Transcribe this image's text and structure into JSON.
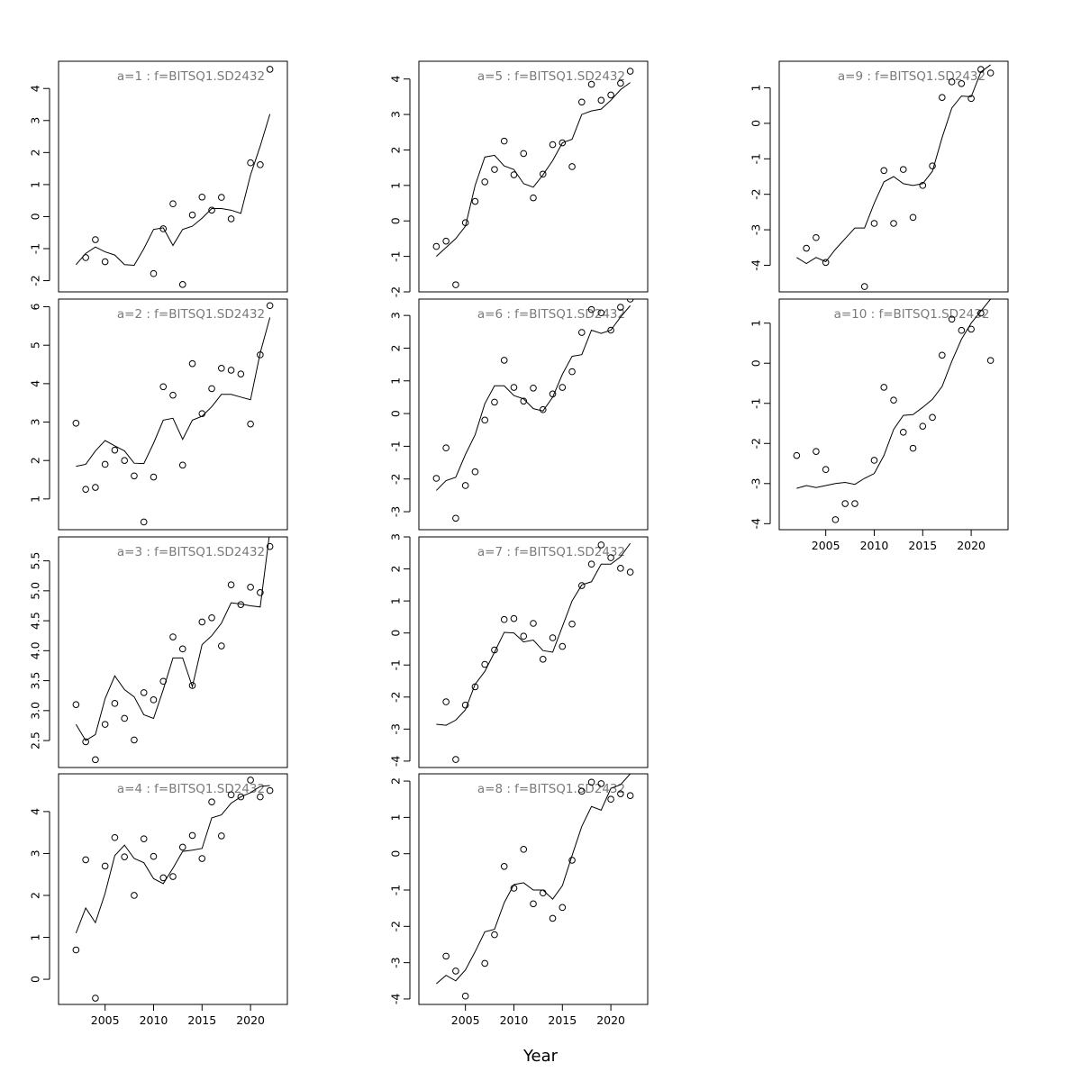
{
  "figure": {
    "xlabel": "Year",
    "xticks": [
      2005,
      2010,
      2015,
      2020
    ]
  },
  "chart_data": [
    {
      "type": "line",
      "title": "a=1  :  f=BITSQ1.SD2432",
      "column": 1,
      "row": 1,
      "xlim": [
        2000.2,
        2023.8
      ],
      "ylim": [
        -2.35,
        4.85
      ],
      "yticks": [
        -2,
        -1,
        0,
        1,
        2,
        3,
        4
      ],
      "x_axis": false,
      "x": [
        2002,
        2003,
        2004,
        2005,
        2006,
        2007,
        2008,
        2009,
        2010,
        2011,
        2012,
        2013,
        2014,
        2015,
        2016,
        2017,
        2018,
        2019,
        2020,
        2021,
        2022
      ],
      "series": [
        {
          "kind": "observed",
          "y": [
            null,
            -1.28,
            -0.72,
            -1.41,
            null,
            null,
            null,
            null,
            -1.78,
            -0.38,
            0.4,
            -2.12,
            0.05,
            0.61,
            0.2,
            0.6,
            -0.07,
            null,
            1.68,
            1.62,
            4.6
          ]
        },
        {
          "kind": "fitted",
          "y": [
            -1.5,
            -1.15,
            -0.95,
            -1.1,
            -1.2,
            -1.5,
            -1.52,
            -1.0,
            -0.4,
            -0.35,
            -0.9,
            -0.4,
            -0.3,
            -0.05,
            0.25,
            0.25,
            0.2,
            0.1,
            1.3,
            2.2,
            3.2
          ]
        }
      ]
    },
    {
      "type": "line",
      "title": "a=2  :  f=BITSQ1.SD2432",
      "column": 1,
      "row": 2,
      "xlim": [
        2000.2,
        2023.8
      ],
      "ylim": [
        0.2,
        6.2
      ],
      "yticks": [
        1,
        2,
        3,
        4,
        5,
        6
      ],
      "x_axis": false,
      "x": [
        2002,
        2003,
        2004,
        2005,
        2006,
        2007,
        2008,
        2009,
        2010,
        2011,
        2012,
        2013,
        2014,
        2015,
        2016,
        2017,
        2018,
        2019,
        2020,
        2021,
        2022
      ],
      "series": [
        {
          "kind": "observed",
          "y": [
            2.97,
            1.25,
            1.3,
            1.9,
            2.27,
            2.0,
            1.6,
            0.4,
            1.57,
            3.92,
            3.7,
            1.88,
            4.52,
            3.22,
            3.87,
            4.4,
            4.35,
            4.25,
            2.95,
            4.75,
            6.03
          ]
        },
        {
          "kind": "fitted",
          "y": [
            1.85,
            1.9,
            2.25,
            2.52,
            2.38,
            2.25,
            1.93,
            1.92,
            2.45,
            3.05,
            3.1,
            2.55,
            3.05,
            3.15,
            3.4,
            3.72,
            3.72,
            3.65,
            3.58,
            4.8,
            5.72
          ]
        }
      ]
    },
    {
      "type": "line",
      "title": "a=3  :  f=BITSQ1.SD2432",
      "column": 1,
      "row": 3,
      "xlim": [
        2000.2,
        2023.8
      ],
      "ylim": [
        2.05,
        5.9
      ],
      "yticks": [
        2.5,
        3.0,
        3.5,
        4.0,
        4.5,
        5.0,
        5.5
      ],
      "ytick_labels": [
        "2.5",
        "3.0",
        "3.5",
        "4.0",
        "4.5",
        "5.0",
        "5.5"
      ],
      "x_axis": false,
      "x": [
        2002,
        2003,
        2004,
        2005,
        2006,
        2007,
        2008,
        2009,
        2010,
        2011,
        2012,
        2013,
        2014,
        2015,
        2016,
        2017,
        2018,
        2019,
        2020,
        2021,
        2022
      ],
      "series": [
        {
          "kind": "observed",
          "y": [
            3.1,
            2.48,
            2.18,
            2.77,
            3.12,
            2.87,
            2.51,
            3.3,
            3.18,
            3.49,
            4.23,
            4.03,
            3.42,
            4.48,
            4.55,
            4.08,
            5.1,
            4.77,
            5.06,
            4.97,
            5.74
          ]
        },
        {
          "kind": "fitted",
          "y": [
            2.77,
            2.5,
            2.6,
            3.2,
            3.58,
            3.35,
            3.23,
            2.93,
            2.87,
            3.35,
            3.88,
            3.88,
            3.4,
            4.1,
            4.25,
            4.46,
            4.8,
            4.78,
            4.75,
            4.73,
            6.0
          ]
        }
      ]
    },
    {
      "type": "line",
      "title": "a=4  :  f=BITSQ1.SD2432",
      "column": 1,
      "row": 4,
      "xlim": [
        2000.2,
        2023.8
      ],
      "ylim": [
        -0.6,
        4.9
      ],
      "yticks": [
        0,
        1,
        2,
        3,
        4
      ],
      "x_axis": true,
      "x": [
        2002,
        2003,
        2004,
        2005,
        2006,
        2007,
        2008,
        2009,
        2010,
        2011,
        2012,
        2013,
        2014,
        2015,
        2016,
        2017,
        2018,
        2019,
        2020,
        2021,
        2022
      ],
      "series": [
        {
          "kind": "observed",
          "y": [
            0.7,
            2.85,
            -0.45,
            2.7,
            3.38,
            2.92,
            2.0,
            3.35,
            2.93,
            2.42,
            2.45,
            3.15,
            3.43,
            2.88,
            4.23,
            3.42,
            4.4,
            4.35,
            4.75,
            4.35,
            4.5
          ]
        },
        {
          "kind": "fitted",
          "y": [
            1.1,
            1.7,
            1.35,
            2.05,
            2.95,
            3.2,
            2.88,
            2.78,
            2.4,
            2.28,
            2.65,
            3.05,
            3.08,
            3.12,
            3.85,
            3.92,
            4.2,
            4.35,
            4.45,
            4.6,
            4.62
          ]
        }
      ]
    },
    {
      "type": "line",
      "title": "a=5  :  f=BITSQ1.SD2432",
      "column": 2,
      "row": 1,
      "xlim": [
        2000.2,
        2023.8
      ],
      "ylim": [
        -2.0,
        4.5
      ],
      "yticks": [
        -2,
        -1,
        0,
        1,
        2,
        3,
        4
      ],
      "x_axis": false,
      "x": [
        2002,
        2003,
        2004,
        2005,
        2006,
        2007,
        2008,
        2009,
        2010,
        2011,
        2012,
        2013,
        2014,
        2015,
        2016,
        2017,
        2018,
        2019,
        2020,
        2021,
        2022
      ],
      "series": [
        {
          "kind": "observed",
          "y": [
            -0.72,
            -0.57,
            -1.8,
            -0.05,
            0.55,
            1.1,
            1.45,
            2.25,
            1.3,
            1.9,
            0.65,
            1.32,
            2.15,
            2.2,
            1.53,
            3.35,
            3.85,
            3.4,
            3.55,
            3.88,
            4.22
          ]
        },
        {
          "kind": "fitted",
          "y": [
            -1.0,
            -0.75,
            -0.5,
            -0.15,
            1.0,
            1.8,
            1.85,
            1.55,
            1.45,
            1.05,
            0.95,
            1.3,
            1.7,
            2.2,
            2.3,
            3.0,
            3.1,
            3.15,
            3.4,
            3.7,
            3.9
          ]
        }
      ]
    },
    {
      "type": "line",
      "title": "a=6  :  f=BITSQ1.SD2432",
      "column": 2,
      "row": 2,
      "xlim": [
        2000.2,
        2023.8
      ],
      "ylim": [
        -3.55,
        3.5
      ],
      "yticks": [
        -3,
        -2,
        -1,
        0,
        1,
        2,
        3
      ],
      "x_axis": false,
      "x": [
        2002,
        2003,
        2004,
        2005,
        2006,
        2007,
        2008,
        2009,
        2010,
        2011,
        2012,
        2013,
        2014,
        2015,
        2016,
        2017,
        2018,
        2019,
        2020,
        2021,
        2022
      ],
      "series": [
        {
          "kind": "observed",
          "y": [
            -1.98,
            -1.05,
            -3.2,
            -2.2,
            -1.78,
            -0.2,
            0.35,
            1.63,
            0.8,
            0.38,
            0.78,
            0.12,
            0.6,
            0.8,
            1.28,
            2.48,
            3.18,
            3.08,
            2.55,
            3.25,
            3.5
          ]
        },
        {
          "kind": "fitted",
          "y": [
            -2.35,
            -2.05,
            -1.95,
            -1.25,
            -0.65,
            0.3,
            0.85,
            0.85,
            0.55,
            0.45,
            0.15,
            0.08,
            0.5,
            1.2,
            1.75,
            1.8,
            2.55,
            2.45,
            2.55,
            2.95,
            3.3
          ]
        }
      ]
    },
    {
      "type": "line",
      "title": "a=7  :  f=BITSQ1.SD2432",
      "column": 2,
      "row": 3,
      "xlim": [
        2000.2,
        2023.8
      ],
      "ylim": [
        -4.2,
        3.0
      ],
      "yticks": [
        -4,
        -3,
        -2,
        -1,
        0,
        1,
        2,
        3
      ],
      "x_axis": false,
      "x": [
        2002,
        2003,
        2004,
        2005,
        2006,
        2007,
        2008,
        2009,
        2010,
        2011,
        2012,
        2013,
        2014,
        2015,
        2016,
        2017,
        2018,
        2019,
        2020,
        2021,
        2022
      ],
      "series": [
        {
          "kind": "observed",
          "y": [
            null,
            -2.15,
            -3.95,
            -2.25,
            -1.68,
            -0.98,
            -0.53,
            0.42,
            0.45,
            -0.1,
            0.3,
            -0.82,
            -0.15,
            -0.42,
            0.28,
            1.48,
            2.15,
            2.75,
            2.35,
            2.02,
            1.9
          ]
        },
        {
          "kind": "fitted",
          "y": [
            -2.85,
            -2.88,
            -2.72,
            -2.4,
            -1.6,
            -1.2,
            -0.6,
            0.02,
            0.0,
            -0.28,
            -0.22,
            -0.55,
            -0.6,
            0.2,
            1.0,
            1.5,
            1.6,
            2.15,
            2.15,
            2.38,
            2.8
          ]
        }
      ]
    },
    {
      "type": "line",
      "title": "a=8  :  f=BITSQ1.SD2432",
      "column": 2,
      "row": 4,
      "xlim": [
        2000.2,
        2023.8
      ],
      "ylim": [
        -4.15,
        2.2
      ],
      "yticks": [
        -4,
        -3,
        -2,
        -1,
        0,
        1,
        2
      ],
      "x_axis": true,
      "x": [
        2002,
        2003,
        2004,
        2005,
        2006,
        2007,
        2008,
        2009,
        2010,
        2011,
        2012,
        2013,
        2014,
        2015,
        2016,
        2017,
        2018,
        2019,
        2020,
        2021,
        2022
      ],
      "series": [
        {
          "kind": "observed",
          "y": [
            null,
            -2.82,
            -3.23,
            -3.92,
            null,
            -3.02,
            -2.23,
            -0.35,
            -0.95,
            0.12,
            -1.38,
            -1.08,
            -1.78,
            -1.48,
            -0.18,
            1.72,
            1.97,
            1.93,
            1.5,
            1.65,
            1.6
          ]
        },
        {
          "kind": "fitted",
          "y": [
            -3.58,
            -3.35,
            -3.5,
            -3.2,
            -2.7,
            -2.15,
            -2.08,
            -1.35,
            -0.85,
            -0.8,
            -1.0,
            -1.0,
            -1.25,
            -0.88,
            -0.05,
            0.75,
            1.3,
            1.2,
            1.8,
            1.9,
            2.2
          ]
        }
      ]
    },
    {
      "type": "line",
      "title": "a=9  :  f=BITSQ1.SD2432",
      "column": 3,
      "row": 1,
      "xlim": [
        2000.2,
        2023.8
      ],
      "ylim": [
        -4.75,
        1.75
      ],
      "yticks": [
        -4,
        -3,
        -2,
        -1,
        0,
        1
      ],
      "x_axis": false,
      "x": [
        2002,
        2003,
        2004,
        2005,
        2006,
        2007,
        2008,
        2009,
        2010,
        2011,
        2012,
        2013,
        2014,
        2015,
        2016,
        2017,
        2018,
        2019,
        2020,
        2021,
        2022
      ],
      "series": [
        {
          "kind": "observed",
          "y": [
            null,
            -3.52,
            -3.22,
            -3.92,
            null,
            null,
            null,
            -4.6,
            -2.82,
            -1.33,
            -2.82,
            -1.3,
            -2.65,
            -1.75,
            -1.2,
            0.73,
            1.17,
            1.12,
            0.7,
            1.52,
            1.42
          ]
        },
        {
          "kind": "fitted",
          "y": [
            -3.78,
            -3.95,
            -3.78,
            -3.9,
            -3.55,
            -3.25,
            -2.95,
            -2.95,
            -2.25,
            -1.65,
            -1.5,
            -1.7,
            -1.75,
            -1.7,
            -1.35,
            -0.4,
            0.43,
            0.77,
            0.75,
            1.45,
            1.65
          ]
        }
      ]
    },
    {
      "type": "line",
      "title": "a=10  :  f=BITSQ1.SD2432",
      "column": 3,
      "row": 2,
      "xlim": [
        2000.2,
        2023.8
      ],
      "ylim": [
        -4.15,
        1.6
      ],
      "yticks": [
        -4,
        -3,
        -2,
        -1,
        0,
        1
      ],
      "x_axis": true,
      "x": [
        2002,
        2003,
        2004,
        2005,
        2006,
        2007,
        2008,
        2009,
        2010,
        2011,
        2012,
        2013,
        2014,
        2015,
        2016,
        2017,
        2018,
        2019,
        2020,
        2021,
        2022
      ],
      "series": [
        {
          "kind": "observed",
          "y": [
            -2.3,
            null,
            -2.2,
            -2.65,
            -3.9,
            -3.5,
            -3.5,
            null,
            -2.42,
            -0.6,
            -0.92,
            -1.72,
            -2.12,
            -1.57,
            -1.35,
            0.2,
            1.1,
            0.82,
            0.85,
            1.25,
            0.07
          ]
        },
        {
          "kind": "fitted",
          "y": [
            -3.12,
            -3.05,
            -3.1,
            -3.05,
            -3.0,
            -2.97,
            -3.02,
            -2.87,
            -2.75,
            -2.3,
            -1.65,
            -1.3,
            -1.28,
            -1.1,
            -0.9,
            -0.58,
            0.05,
            0.6,
            1.0,
            1.3,
            1.6
          ]
        }
      ]
    }
  ]
}
